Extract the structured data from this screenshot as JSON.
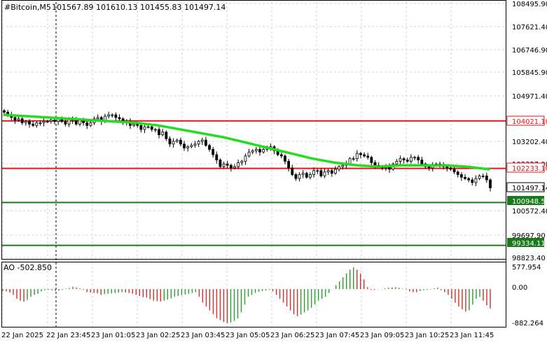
{
  "header": {
    "symbol": "#Bitcoin,M5",
    "ohlc": "101567.89 101610.13 101455.83 101497.14"
  },
  "price_axis": {
    "ticks": [
      "108495.90",
      "107621.40",
      "106746.90",
      "105845.90",
      "104971.40",
      "103202.40",
      "102327.90",
      "100572.40",
      "99697.90",
      "98823.40"
    ],
    "levels": [
      {
        "label": "104021.10",
        "color": "#e8161c"
      },
      {
        "label": "102233.10",
        "color": "#e8161c"
      },
      {
        "label": "100948.52",
        "color": "#1b7a1b"
      },
      {
        "label": "99334.11",
        "color": "#1b7a1b"
      }
    ],
    "current": "101497.14"
  },
  "ao_panel": {
    "title": "AO -502.850",
    "ticks": [
      "577.954",
      "0.00",
      "-882.264"
    ]
  },
  "time_axis": [
    "22 Jan 2025",
    "22 Jan 23:45",
    "23 Jan 01:05",
    "23 Jan 02:25",
    "23 Jan 03:45",
    "23 Jan 05:05",
    "23 Jan 06:25",
    "23 Jan 07:45",
    "23 Jan 09:05",
    "23 Jan 10:25",
    "23 Jan 11:45"
  ],
  "chart_data": {
    "type": "candlestick",
    "title": "#Bitcoin,M5",
    "timeframe": "M5",
    "ylim": [
      98823.4,
      108495.9
    ],
    "ohlc_last": {
      "open": 101567.89,
      "high": 101610.13,
      "low": 101455.83,
      "close": 101497.14
    },
    "close_series": [
      104350,
      104250,
      104150,
      104050,
      104100,
      103950,
      104000,
      103900,
      103850,
      103950,
      103950,
      104000,
      104000,
      104050,
      104000,
      104100,
      104000,
      103900,
      104100,
      104050,
      103900,
      104050,
      103950,
      103850,
      103950,
      104100,
      104150,
      104000,
      104200,
      104250,
      104250,
      104150,
      104100,
      103950,
      104000,
      103850,
      103900,
      103850,
      103700,
      103800,
      103800,
      103700,
      103700,
      103500,
      103600,
      103350,
      103150,
      103250,
      103300,
      103150,
      103000,
      103050,
      103100,
      103150,
      103250,
      103300,
      103100,
      102950,
      102750,
      102550,
      102300,
      102400,
      102350,
      102250,
      102300,
      102450,
      102500,
      102700,
      102850,
      102900,
      102950,
      102850,
      102950,
      103000,
      103050,
      102900,
      102750,
      102700,
      102500,
      102250,
      102000,
      101850,
      102000,
      102050,
      101900,
      102000,
      102150,
      102150,
      101950,
      102100,
      102150,
      102050,
      102200,
      102300,
      102350,
      102400,
      102600,
      102600,
      102800,
      102750,
      102700,
      102650,
      102450,
      102350,
      102300,
      102250,
      102300,
      102200,
      102400,
      102500,
      102600,
      102550,
      102500,
      102650,
      102650,
      102550,
      102400,
      102300,
      102250,
      102350,
      102400,
      102350,
      102300,
      102250,
      102200,
      102100,
      102000,
      101900,
      101850,
      101800,
      101700,
      101850,
      101950,
      101950,
      101800,
      101500
    ],
    "moving_average": [
      104250,
      104200,
      104150,
      104100,
      104050,
      104000,
      103950,
      103850,
      103700,
      103550,
      103400,
      103200,
      103000,
      102800,
      102600,
      102450,
      102350,
      102300,
      102350,
      102350,
      102350,
      102300,
      102200
    ],
    "levels": [
      104021.1,
      102233.1,
      100948.52,
      99334.11
    ],
    "ao": {
      "title": "AO -502.850",
      "current": -502.85,
      "ylim": [
        -882.264,
        577.954
      ],
      "values": [
        -50,
        -60,
        -90,
        -150,
        -250,
        -300,
        -320,
        -280,
        -200,
        -150,
        -120,
        -60,
        -30,
        -20,
        -30,
        -50,
        -40,
        -20,
        10,
        30,
        60,
        40,
        20,
        -20,
        -80,
        -90,
        -100,
        -110,
        -150,
        -130,
        -120,
        -110,
        -100,
        -90,
        -80,
        -90,
        -100,
        -120,
        -150,
        -180,
        -210,
        -220,
        -260,
        -300,
        -310,
        -320,
        -300,
        -270,
        -240,
        -200,
        -180,
        -160,
        -140,
        -120,
        -100,
        -80,
        -200,
        -350,
        -450,
        -550,
        -650,
        -750,
        -800,
        -850,
        -880,
        -860,
        -820,
        -760,
        -600,
        -400,
        -200,
        -150,
        -100,
        -70,
        -50,
        -40,
        -20,
        -60,
        -150,
        -250,
        -350,
        -450,
        -550,
        -650,
        -700,
        -660,
        -600,
        -550,
        -480,
        -400,
        -300,
        -250,
        -200,
        -100,
        0,
        100,
        200,
        300,
        400,
        500,
        560,
        500,
        400,
        250,
        50,
        -20,
        -20,
        -10,
        0,
        20,
        40,
        40,
        50,
        30,
        10,
        -20,
        -60,
        -80,
        -80,
        -50,
        -30,
        -20,
        -10,
        20,
        40,
        -30,
        -80,
        -150,
        -250,
        -350,
        -450,
        -520,
        -580,
        -550,
        -400,
        -250,
        -200,
        -300,
        -420,
        -502
      ]
    }
  }
}
